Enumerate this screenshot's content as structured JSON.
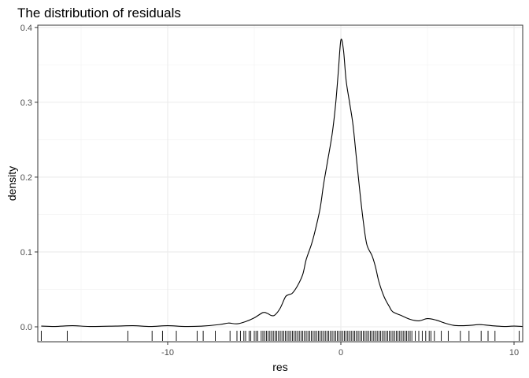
{
  "chart_data": {
    "type": "area",
    "title": "The distribution of residuals",
    "xlabel": "res",
    "ylabel": "density",
    "xlim": [
      -17.5,
      10.5
    ],
    "ylim": [
      -0.02,
      0.403
    ],
    "x_ticks": [
      -10,
      0,
      10
    ],
    "x_tick_labels": [
      "-10",
      "0",
      "10"
    ],
    "y_ticks": [
      0.0,
      0.1,
      0.2,
      0.3,
      0.4
    ],
    "y_tick_labels": [
      "0.0",
      "0.1",
      "0.2",
      "0.3",
      "0.4"
    ],
    "grid": true,
    "colors": {
      "line": "#000000",
      "grid_major": "#ebebeb",
      "grid_minor": "#f2f2f2",
      "panel_border": "#333333",
      "background": "#ffffff"
    },
    "density_curve": {
      "x": [
        -17.3,
        -16.5,
        -15.5,
        -14.5,
        -13.0,
        -12.0,
        -11.0,
        -10.0,
        -9.0,
        -8.0,
        -7.0,
        -6.5,
        -6.0,
        -5.5,
        -5.0,
        -4.5,
        -4.25,
        -4.0,
        -3.8,
        -3.5,
        -3.2,
        -3.0,
        -2.8,
        -2.5,
        -2.2,
        -2.0,
        -1.7,
        -1.5,
        -1.2,
        -1.0,
        -0.8,
        -0.5,
        -0.3,
        -0.15,
        0.0,
        0.15,
        0.3,
        0.5,
        0.7,
        0.9,
        1.1,
        1.3,
        1.5,
        1.8,
        2.0,
        2.2,
        2.5,
        2.8,
        3.0,
        3.5,
        4.0,
        4.5,
        5.0,
        5.5,
        6.0,
        6.5,
        7.0,
        7.5,
        8.0,
        8.5,
        9.0,
        9.5,
        10.0,
        10.5
      ],
      "y": [
        0.001,
        0.0005,
        0.0015,
        0.0005,
        0.001,
        0.0015,
        0.0005,
        0.0015,
        0.0005,
        0.001,
        0.003,
        0.005,
        0.004,
        0.007,
        0.012,
        0.019,
        0.018,
        0.015,
        0.016,
        0.025,
        0.04,
        0.043,
        0.045,
        0.055,
        0.07,
        0.09,
        0.11,
        0.127,
        0.158,
        0.19,
        0.217,
        0.258,
        0.298,
        0.34,
        0.383,
        0.37,
        0.33,
        0.3,
        0.27,
        0.225,
        0.18,
        0.14,
        0.11,
        0.095,
        0.08,
        0.06,
        0.04,
        0.027,
        0.02,
        0.015,
        0.01,
        0.008,
        0.011,
        0.009,
        0.005,
        0.002,
        0.0015,
        0.002,
        0.003,
        0.002,
        0.001,
        0.0005,
        0.001,
        0.0005
      ]
    },
    "rug_values": [
      -17.3,
      -15.8,
      -12.3,
      -10.9,
      -10.3,
      -9.5,
      -8.3,
      -7.95,
      -7.25,
      -6.4,
      -6.0,
      -5.8,
      -5.6,
      -5.5,
      -5.3,
      -5.2,
      -5.0,
      -4.9,
      -4.8,
      -4.6,
      -4.5,
      -4.4,
      -4.3,
      -4.2,
      -4.1,
      -4.0,
      -3.9,
      -3.8,
      -3.7,
      -3.6,
      -3.5,
      -3.4,
      -3.3,
      -3.2,
      -3.1,
      -3.0,
      -2.9,
      -2.8,
      -2.7,
      -2.6,
      -2.5,
      -2.4,
      -2.3,
      -2.2,
      -2.1,
      -2.0,
      -1.9,
      -1.8,
      -1.7,
      -1.6,
      -1.5,
      -1.4,
      -1.3,
      -1.2,
      -1.1,
      -1.0,
      -0.9,
      -0.8,
      -0.7,
      -0.6,
      -0.5,
      -0.4,
      -0.3,
      -0.2,
      -0.1,
      0.0,
      0.1,
      0.2,
      0.3,
      0.4,
      0.5,
      0.6,
      0.7,
      0.8,
      0.9,
      1.0,
      1.1,
      1.2,
      1.3,
      1.4,
      1.5,
      1.6,
      1.7,
      1.8,
      1.9,
      2.0,
      2.1,
      2.2,
      2.3,
      2.4,
      2.5,
      2.6,
      2.7,
      2.8,
      2.9,
      3.0,
      3.1,
      3.2,
      3.3,
      3.4,
      3.5,
      3.6,
      3.7,
      3.8,
      3.9,
      4.0,
      4.1,
      4.3,
      4.5,
      4.7,
      4.9,
      5.1,
      5.2,
      5.4,
      5.8,
      6.2,
      6.9,
      7.4,
      8.1,
      8.5,
      8.9,
      10.3
    ]
  }
}
